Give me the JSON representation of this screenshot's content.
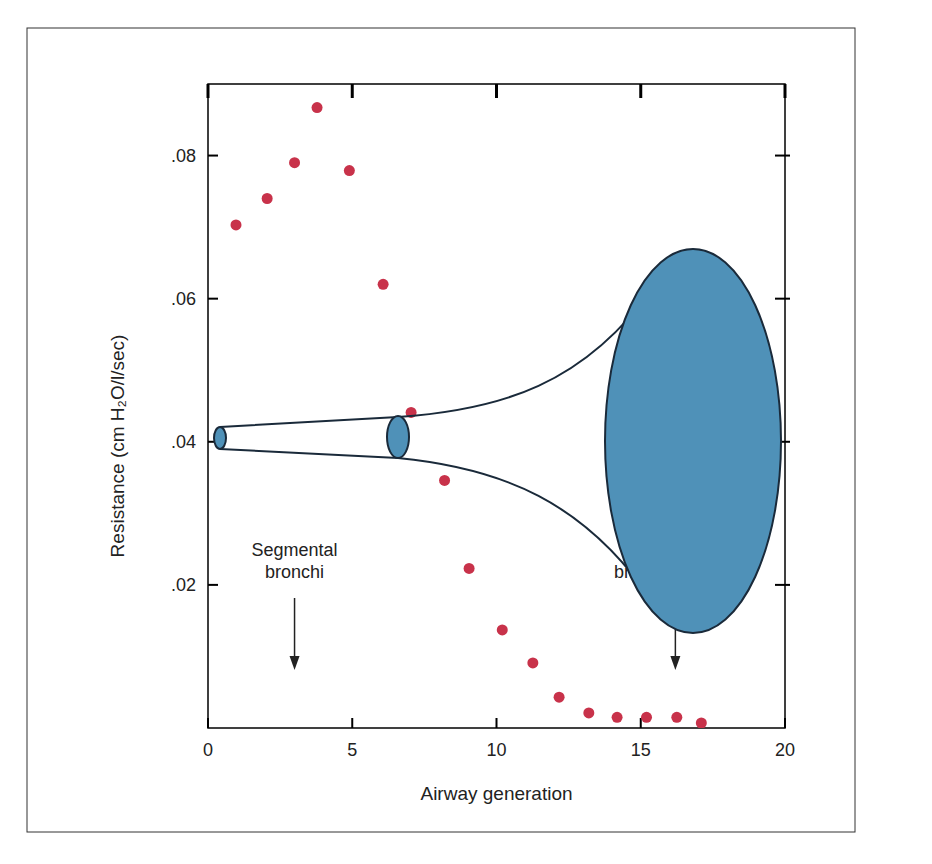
{
  "chart_data": {
    "type": "scatter",
    "x_label": "Airway generation",
    "y_label": "Resistance (cm H₂O/l/sec)",
    "x": [
      0.97,
      2.05,
      3.0,
      3.78,
      4.9,
      6.07,
      7.04,
      8.2,
      9.05,
      10.2,
      11.26,
      12.17,
      13.2,
      14.18,
      15.2,
      16.25,
      17.1
    ],
    "values": [
      0.0703,
      0.074,
      0.079,
      0.0867,
      0.0779,
      0.062,
      0.0441,
      0.0346,
      0.0223,
      0.0137,
      0.0091,
      0.0043,
      0.0021,
      0.0015,
      0.0015,
      0.0015,
      0.0007
    ],
    "color": "#c8324a",
    "marker": "circle",
    "xlim": [
      0,
      20
    ],
    "ylim": [
      0,
      0.09
    ],
    "xticks": [
      0,
      5,
      10,
      15,
      20
    ],
    "yticks": [
      {
        "value": 0.02,
        "label": ".02"
      },
      {
        "value": 0.04,
        "label": ".04"
      },
      {
        "value": 0.06,
        "label": ".06"
      },
      {
        "value": 0.08,
        "label": ".08"
      }
    ],
    "annotations": [
      {
        "text": [
          "Segmental",
          "bronchi"
        ],
        "x": 3
      },
      {
        "text": [
          "br"
        ],
        "x": 16.2
      }
    ]
  }
}
